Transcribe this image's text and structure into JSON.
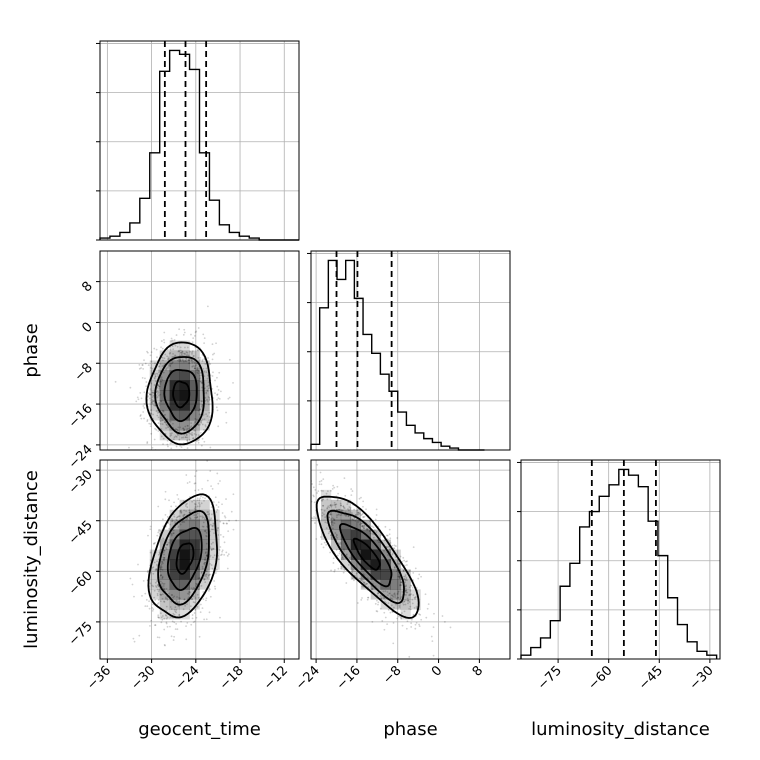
{
  "chart_data": {
    "type": "corner",
    "parameters": [
      "geocent_time",
      "phase",
      "luminosity_distance"
    ],
    "labels": {
      "geocent_time": "geocent_time",
      "phase": "phase",
      "luminosity_distance": "luminosity_distance"
    },
    "ranges": {
      "geocent_time": [
        -37,
        -10
      ],
      "phase": [
        -25,
        14
      ],
      "luminosity_distance": [
        -86,
        -27
      ]
    },
    "ticks": {
      "geocent_time": [
        -36,
        -30,
        -24,
        -18,
        -12
      ],
      "phase": [
        -24,
        -16,
        -8,
        0,
        8
      ],
      "luminosity_distance": [
        -75,
        -60,
        -45,
        -30
      ]
    },
    "quantiles": {
      "geocent_time": [
        -28.2,
        -25.4,
        -22.6
      ],
      "phase": [
        -20.0,
        -15.9,
        -9.2
      ],
      "luminosity_distance": [
        -65.0,
        -55.5,
        -46.0
      ]
    },
    "histograms": {
      "geocent_time": {
        "edges": [
          -37,
          -35.65,
          -34.3,
          -32.95,
          -31.6,
          -30.25,
          -28.9,
          -27.55,
          -26.2,
          -24.85,
          -23.5,
          -22.15,
          -20.8,
          -19.45,
          -18.1,
          -16.75,
          -15.4,
          -14.05,
          -12.7,
          -11.35,
          -10
        ],
        "counts": [
          1,
          2,
          4,
          9,
          22,
          46,
          89,
          100,
          98,
          90,
          46,
          21,
          8,
          4,
          2,
          1,
          0,
          0,
          0,
          0
        ]
      },
      "phase": {
        "edges": [
          -25,
          -23.3,
          -21.6,
          -19.9,
          -18.2,
          -16.5,
          -14.8,
          -13.1,
          -11.4,
          -9.7,
          -8.0,
          -6.3,
          -4.6,
          -2.9,
          -1.2,
          0.5,
          2.2,
          3.9,
          5.6,
          7.3,
          9.0
        ],
        "counts": [
          3,
          75,
          100,
          90,
          100,
          80,
          61,
          51,
          40,
          31,
          20,
          13,
          9,
          6,
          4,
          2,
          1,
          0,
          0,
          0
        ]
      },
      "luminosity_distance": {
        "edges": [
          -86,
          -83.1,
          -80.2,
          -77.3,
          -74.4,
          -71.5,
          -68.6,
          -65.7,
          -62.8,
          -59.9,
          -57.0,
          -54.1,
          -51.2,
          -48.3,
          -45.4,
          -42.5,
          -39.6,
          -36.7,
          -33.8,
          -30.9,
          -28
        ],
        "counts": [
          2,
          6,
          11,
          20,
          38,
          50,
          69,
          77,
          85,
          91,
          99,
          96,
          90,
          72,
          54,
          32,
          18,
          9,
          4,
          2
        ]
      }
    },
    "pairs": [
      {
        "x": "geocent_time",
        "y": "phase",
        "mean": [
          -26.0,
          -14.0
        ],
        "sd": [
          2.2,
          5.0
        ],
        "rho": 0.0
      },
      {
        "x": "geocent_time",
        "y": "luminosity_distance",
        "mean": [
          -25.5,
          -56.0
        ],
        "sd": [
          2.3,
          9.0
        ],
        "rho": 0.35
      },
      {
        "x": "phase",
        "y": "luminosity_distance",
        "mean": [
          -14.0,
          -55.0
        ],
        "sd": [
          5.0,
          9.0
        ],
        "rho": -0.8
      }
    ],
    "levels_sigma": [
      0.5,
      1.0,
      1.5,
      2.0
    ],
    "grid": true,
    "colors": {
      "line": "#000000",
      "scatter": "#000000"
    }
  }
}
